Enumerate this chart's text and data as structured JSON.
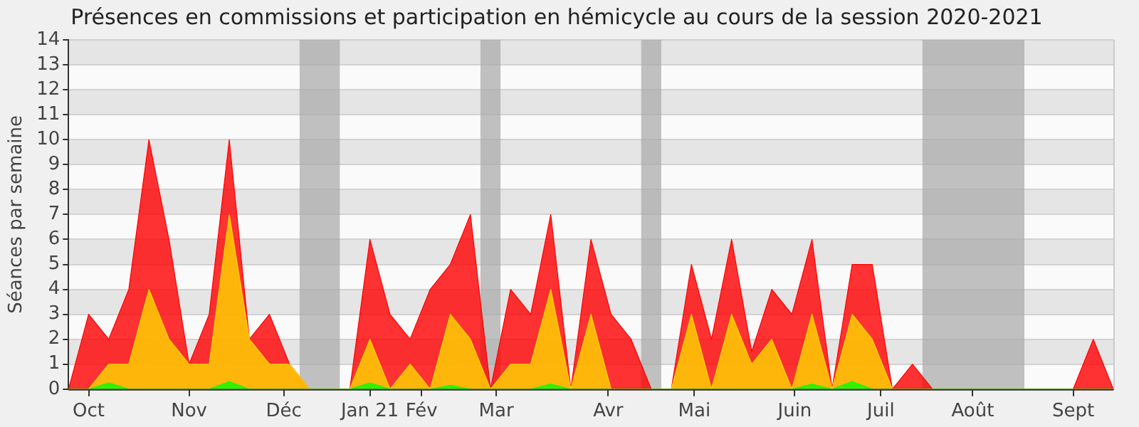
{
  "chart_data": {
    "type": "area",
    "title": "Présences en commissions et participation en hémicycle au cours de la session 2020-2021",
    "ylabel": "Séances par semaine",
    "x": [
      "2020-10-05",
      "2020-10-12",
      "2020-10-19",
      "2020-10-26",
      "2020-11-02",
      "2020-11-09",
      "2020-11-16",
      "2020-11-23",
      "2020-11-30",
      "2020-12-07",
      "2020-12-14",
      "2020-12-21",
      "2020-12-28",
      "2021-01-04",
      "2021-01-11",
      "2021-01-18",
      "2021-01-25",
      "2021-02-01",
      "2021-02-08",
      "2021-02-15",
      "2021-02-22",
      "2021-03-01",
      "2021-03-08",
      "2021-03-15",
      "2021-03-22",
      "2021-03-29",
      "2021-04-05",
      "2021-04-12",
      "2021-04-19",
      "2021-04-26",
      "2021-05-03",
      "2021-05-10",
      "2021-05-17",
      "2021-05-24",
      "2021-05-31",
      "2021-06-07",
      "2021-06-14",
      "2021-06-21",
      "2021-06-28",
      "2021-07-05",
      "2021-07-12",
      "2021-07-19",
      "2021-07-26",
      "2021-08-02",
      "2021-08-09",
      "2021-08-16",
      "2021-08-23",
      "2021-08-30",
      "2021-09-06",
      "2021-09-13",
      "2021-09-20",
      "2021-09-27",
      "2021-10-04"
    ],
    "series": [
      {
        "color": "#ff0000",
        "values": [
          0,
          3,
          2,
          4,
          10,
          6,
          1,
          3,
          10,
          2,
          3,
          1,
          0,
          0,
          0,
          6,
          3,
          2,
          4,
          5,
          7,
          0,
          4,
          3,
          7,
          0,
          6,
          3,
          2,
          0,
          0,
          5,
          2,
          6,
          1.5,
          4,
          3,
          6,
          0,
          5,
          5,
          0,
          1,
          0,
          0,
          0,
          0,
          0,
          0,
          0,
          0,
          2,
          0
        ]
      },
      {
        "color": "#ffd700",
        "values": [
          0,
          0,
          1,
          1,
          4,
          2,
          1,
          1,
          7,
          2,
          1,
          1,
          0,
          0,
          0,
          2,
          0,
          1,
          0,
          3,
          2,
          0,
          1,
          1,
          4,
          0,
          3,
          0,
          0,
          0,
          0,
          3,
          0,
          3,
          1,
          2,
          0,
          3,
          0,
          3,
          2,
          0,
          0,
          0,
          0,
          0,
          0,
          0,
          0,
          0,
          0,
          0,
          0
        ]
      },
      {
        "color": "#00ff00",
        "values": [
          0,
          0,
          0.25,
          0,
          0,
          0,
          0,
          0,
          0.3,
          0,
          0,
          0,
          0,
          0,
          0,
          0.25,
          0,
          0,
          0,
          0.15,
          0,
          0,
          0,
          0,
          0.2,
          0,
          0,
          0,
          0,
          0,
          0,
          0,
          0,
          0,
          0,
          0,
          0,
          0.2,
          0,
          0.3,
          0,
          0,
          0,
          0,
          0,
          0,
          0,
          0,
          0,
          0,
          0,
          0,
          0
        ]
      }
    ],
    "xlim": [
      "2020-10-05",
      "2021-10-04"
    ],
    "ylim": [
      0,
      14
    ],
    "xticks": [
      {
        "value": "2020-10-12",
        "label": "Oct"
      },
      {
        "value": "2020-11-16",
        "label": "Nov"
      },
      {
        "value": "2020-12-19",
        "label": "Déc"
      },
      {
        "value": "2021-01-18",
        "label": "Jan 21"
      },
      {
        "value": "2021-02-05",
        "label": "Fév"
      },
      {
        "value": "2021-03-03",
        "label": "Mar"
      },
      {
        "value": "2021-04-11",
        "label": "Avr"
      },
      {
        "value": "2021-05-11",
        "label": "Mai"
      },
      {
        "value": "2021-06-15",
        "label": "Juin"
      },
      {
        "value": "2021-07-15",
        "label": "Juil"
      },
      {
        "value": "2021-08-16",
        "label": "Août"
      },
      {
        "value": "2021-09-20",
        "label": "Sept"
      }
    ],
    "yticks": [
      0,
      1,
      2,
      3,
      4,
      5,
      6,
      7,
      8,
      9,
      10,
      11,
      12,
      13,
      14
    ],
    "bands": [
      {
        "axis": "x",
        "from": "2020-12-24T12:00",
        "to": "2021-01-07T12:00",
        "color": "#aaaaaa"
      },
      {
        "axis": "x",
        "from": "2021-02-25T12:00",
        "to": "2021-03-04T12:00",
        "color": "#aaaaaa"
      },
      {
        "axis": "x",
        "from": "2021-04-22T12:00",
        "to": "2021-04-29T12:00",
        "color": "#aaaaaa"
      },
      {
        "axis": "x",
        "from": "2021-07-29T12:00",
        "to": "2021-09-03",
        "color": "#aaaaaa"
      }
    ],
    "grid": "y",
    "legend": false
  }
}
